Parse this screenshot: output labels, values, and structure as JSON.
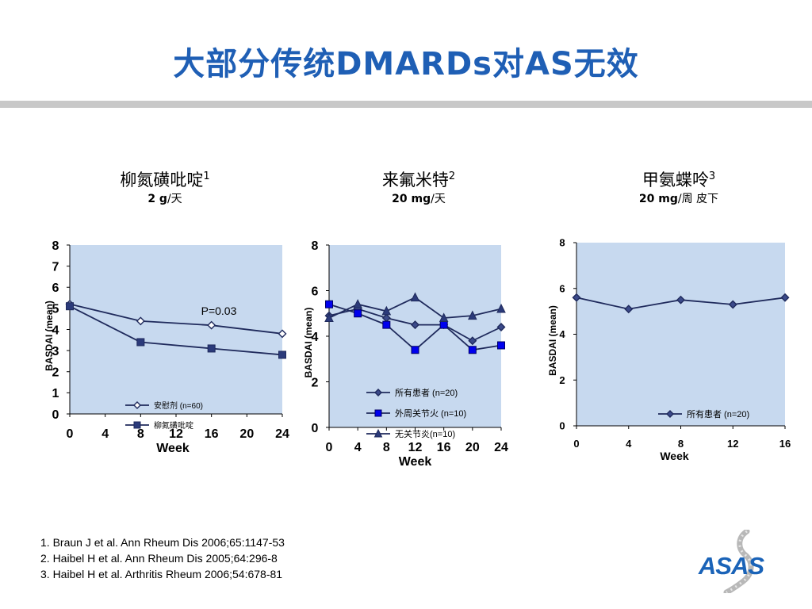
{
  "title": "大部分传统DMARDs对AS无效",
  "panels": [
    {
      "drug": "柳氮磺吡啶",
      "ref": "1",
      "dose_bold": "2 g",
      "dose_rest": "/天"
    },
    {
      "drug": "来氟米特",
      "ref": "2",
      "dose_bold": "20 mg",
      "dose_rest": "/天"
    },
    {
      "drug": "甲氨蝶呤",
      "ref": "3",
      "dose_bold": "20 mg",
      "dose_rest": "/周 皮下"
    }
  ],
  "references": [
    "1. Braun J et al. Ann Rheum Dis 2006;65:1147-53",
    "2. Haibel H et al. Ann Rheum Dis 2005;64:296-8",
    "3. Haibel H et al. Arthritis Rheum 2006;54:678-81"
  ],
  "logo_text": "ASAS",
  "colors": {
    "title": "#1f5fb5",
    "plot_bg": "#c7d9ef",
    "series_dark": "#1f2a5c",
    "series_blue": "#0000ee"
  },
  "chart_data": [
    {
      "type": "line",
      "x": [
        0,
        8,
        16,
        24
      ],
      "xticks": [
        0,
        4,
        8,
        12,
        16,
        20,
        24
      ],
      "xlim": [
        0,
        24
      ],
      "yticks": [
        0,
        1,
        2,
        3,
        4,
        5,
        6,
        7,
        8
      ],
      "ylim": [
        0,
        8
      ],
      "xlabel": "Week",
      "ylabel": "BASDAI (mean)",
      "annotation": "P=0.03",
      "legend_position": "bottom-center",
      "series": [
        {
          "name": "安慰剂 (n=60)",
          "marker": "diamond-open",
          "values": [
            5.2,
            4.4,
            4.2,
            3.8
          ]
        },
        {
          "name": "柳氮磺吡啶",
          "marker": "square",
          "values": [
            5.1,
            3.4,
            3.1,
            2.8
          ]
        }
      ]
    },
    {
      "type": "line",
      "x": [
        0,
        4,
        8,
        12,
        16,
        20,
        24
      ],
      "xticks": [
        0,
        4,
        8,
        12,
        16,
        20,
        24
      ],
      "xlim": [
        0,
        24
      ],
      "yticks": [
        0,
        2,
        4,
        6,
        8
      ],
      "ylim": [
        0,
        8
      ],
      "xlabel": "Week",
      "ylabel": "BASDAI (mean)",
      "legend_position": "bottom-right",
      "series": [
        {
          "name": "所有患者 (n=20)",
          "marker": "diamond",
          "values": [
            4.9,
            5.2,
            4.8,
            4.5,
            4.5,
            3.8,
            4.4
          ]
        },
        {
          "name": "外周关节火 (n=10)",
          "marker": "square-blue",
          "values": [
            5.4,
            5.0,
            4.5,
            3.4,
            4.5,
            3.4,
            3.6
          ]
        },
        {
          "name": "无关节炎(n=10)",
          "marker": "triangle",
          "values": [
            4.8,
            5.4,
            5.1,
            5.7,
            4.8,
            4.9,
            5.2
          ]
        }
      ]
    },
    {
      "type": "line",
      "x": [
        0,
        4,
        8,
        12,
        16
      ],
      "xticks": [
        0,
        4,
        8,
        12,
        16
      ],
      "xlim": [
        0,
        16
      ],
      "yticks": [
        0,
        2,
        4,
        6,
        8
      ],
      "ylim": [
        0,
        8
      ],
      "xlabel": "Week",
      "ylabel": "BASDAI (mean)",
      "legend_position": "bottom-right",
      "series": [
        {
          "name": "所有患者 (n=20)",
          "marker": "diamond",
          "values": [
            5.6,
            5.1,
            5.5,
            5.3,
            5.6
          ]
        }
      ]
    }
  ]
}
